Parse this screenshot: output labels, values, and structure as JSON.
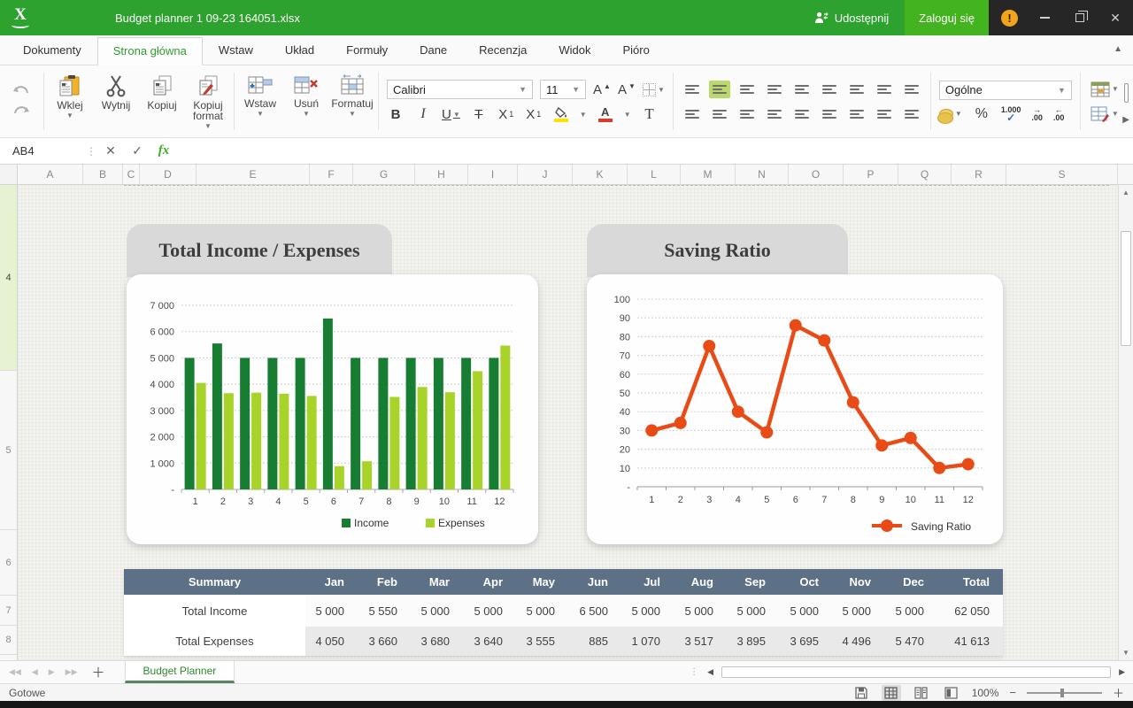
{
  "titlebar": {
    "title": "Budget planner 1 09-23 164051.xlsx",
    "share_label": "Udostępnij",
    "login_label": "Zaloguj się",
    "warning_badge": "!"
  },
  "menu": {
    "tabs": [
      "Dokumenty",
      "Strona główna",
      "Wstaw",
      "Układ",
      "Formuły",
      "Dane",
      "Recenzja",
      "Widok",
      "Pióro"
    ],
    "active_tab": "Strona główna"
  },
  "ribbon": {
    "paste_label": "Wklej",
    "cut_label": "Wytnij",
    "copy_label": "Kopiuj",
    "format_painter_label": "Kopiuj format",
    "insert_label": "Wstaw",
    "delete_label": "Usuń",
    "format_label": "Formatuj",
    "font_family": "Calibri",
    "font_size": "11",
    "number_format": "Ogólne",
    "thousands_icon_text": "1.000",
    "decimal_inc_text": ".00",
    "decimal_dec_text": ".00"
  },
  "formula_bar": {
    "cell_reference": "AB4",
    "fx_label": "fx"
  },
  "grid": {
    "column_letters": [
      "A",
      "B",
      "C",
      "D",
      "E",
      "F",
      "G",
      "H",
      "I",
      "J",
      "K",
      "L",
      "M",
      "N",
      "O",
      "P",
      "Q",
      "R",
      "S"
    ],
    "row_numbers": [
      "4",
      "5",
      "6",
      "7",
      "8"
    ],
    "selected_row": "4"
  },
  "chart_data": [
    {
      "type": "bar",
      "title": "Total Income / Expenses",
      "categories": [
        "1",
        "2",
        "3",
        "4",
        "5",
        "6",
        "7",
        "8",
        "9",
        "10",
        "11",
        "12"
      ],
      "series": [
        {
          "name": "Income",
          "color": "#177d33",
          "values": [
            5000,
            5550,
            5000,
            5000,
            5000,
            6500,
            5000,
            5000,
            5000,
            5000,
            5000,
            5000
          ]
        },
        {
          "name": "Expenses",
          "color": "#a8d42a",
          "values": [
            4050,
            3660,
            3680,
            3640,
            3555,
            885,
            1070,
            3517,
            3895,
            3695,
            4496,
            5470
          ]
        }
      ],
      "ylim": [
        0,
        7000
      ],
      "ytick_step": 1000,
      "ytick_labels": [
        "-",
        "1 000",
        "2 000",
        "3 000",
        "4 000",
        "5 000",
        "6 000",
        "7 000"
      ],
      "grid": true,
      "legend_position": "bottom-center"
    },
    {
      "type": "line",
      "title": "Saving Ratio",
      "categories": [
        "1",
        "2",
        "3",
        "4",
        "5",
        "6",
        "7",
        "8",
        "9",
        "10",
        "11",
        "12"
      ],
      "series": [
        {
          "name": "Saving Ratio",
          "color": "#e84b16",
          "values": [
            30,
            34,
            75,
            40,
            29,
            86,
            78,
            45,
            22,
            26,
            10,
            12
          ]
        }
      ],
      "ylim": [
        0,
        100
      ],
      "ytick_step": 10,
      "ytick_labels": [
        "-",
        "10",
        "20",
        "30",
        "40",
        "50",
        "60",
        "70",
        "80",
        "90",
        "100"
      ],
      "grid": true,
      "legend_position": "bottom-right"
    }
  ],
  "table": {
    "headers": [
      "Summary",
      "Jan",
      "Feb",
      "Mar",
      "Apr",
      "May",
      "Jun",
      "Jul",
      "Aug",
      "Sep",
      "Oct",
      "Nov",
      "Dec",
      "Total"
    ],
    "rows": [
      {
        "label": "Total Income",
        "values": [
          "5 000",
          "5 550",
          "5 000",
          "5 000",
          "5 000",
          "6 500",
          "5 000",
          "5 000",
          "5 000",
          "5 000",
          "5 000",
          "5 000",
          "62 050"
        ]
      },
      {
        "label": "Total Expenses",
        "values": [
          "4 050",
          "3 660",
          "3 680",
          "3 640",
          "3 555",
          "885",
          "1 070",
          "3 517",
          "3 895",
          "3 695",
          "4 496",
          "5 470",
          "41 613"
        ]
      }
    ]
  },
  "sheet_bar": {
    "tab_name": "Budget Planner"
  },
  "status_bar": {
    "status": "Gotowe",
    "zoom_level": "100%"
  },
  "colors": {
    "titlebar_green": "#2ea22e",
    "login_green": "#43b31f",
    "income_bar": "#177d33",
    "expenses_bar": "#a8d42a",
    "saving_line": "#e84b16",
    "table_header": "#5d7186",
    "active_align_highlight": "#b9d96a",
    "warning_badge": "#f2a51c"
  }
}
